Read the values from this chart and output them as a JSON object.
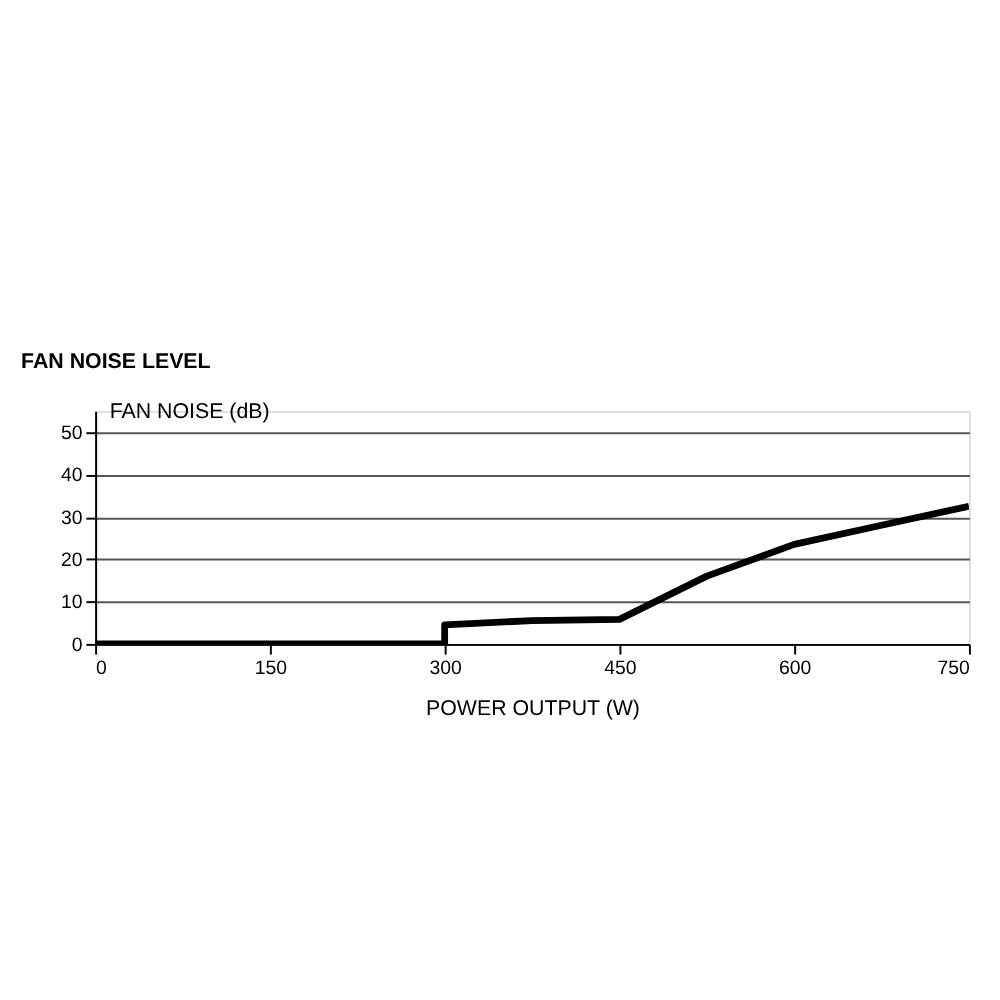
{
  "chart_data": {
    "type": "line",
    "title": "FAN NOISE LEVEL",
    "xlabel": "POWER OUTPUT (W)",
    "ylabel": "FAN NOISE (dB)",
    "series": [
      {
        "color": "#000000",
        "x": [
          0,
          300,
          300,
          375,
          450,
          525,
          600,
          675,
          750
        ],
        "values": [
          0,
          0,
          4.5,
          5.5,
          5.8,
          16,
          23.5,
          28,
          32.5
        ]
      }
    ],
    "xlim": [
      0,
      750
    ],
    "xticks": [
      0,
      150,
      300,
      450,
      600,
      750
    ],
    "ylim": [
      0,
      55
    ],
    "yticks": [
      0,
      10,
      20,
      30,
      40,
      50
    ],
    "grid": "y",
    "marker": "none",
    "line_style": "solid"
  }
}
